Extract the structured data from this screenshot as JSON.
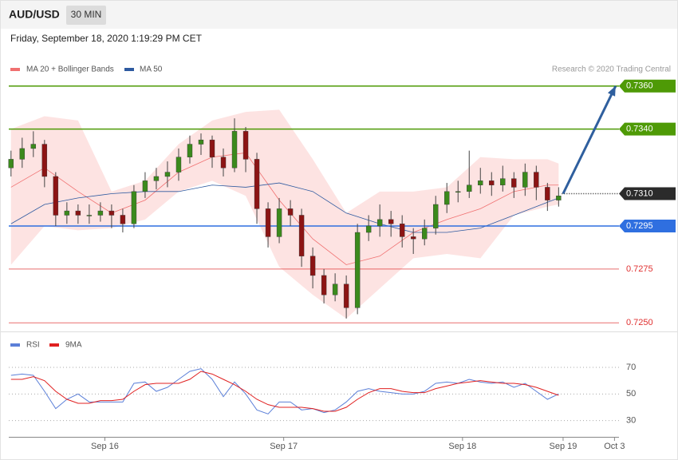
{
  "header": {
    "symbol": "AUD/USD",
    "interval": "30 MIN",
    "datetime": "Friday, September 18, 2020 1:19:29 PM CET",
    "credit": "Research © 2020 Trading Central"
  },
  "chart_data": [
    {
      "type": "candlestick",
      "xlim": [
        -0.2,
        54.4
      ],
      "ylim": [
        0.7246,
        0.7364
      ],
      "up_color": "#3b8a1c",
      "down_color": "#8c1414",
      "opens": [
        0.7322,
        0.7326,
        0.7331,
        0.7333,
        0.7318,
        0.73,
        0.7302,
        0.73,
        0.73,
        0.7302,
        0.73,
        0.7296,
        0.7311,
        0.7316,
        0.7318,
        0.732,
        0.7327,
        0.7333,
        0.7335,
        0.7327,
        0.7322,
        0.7339,
        0.7326,
        0.7303,
        0.729,
        0.7303,
        0.73,
        0.7281,
        0.7272,
        0.7263,
        0.7268,
        0.7257,
        0.7292,
        0.7295,
        0.7298,
        0.7296,
        0.729,
        0.7289,
        0.7294,
        0.7305,
        0.7311,
        0.7311,
        0.7314,
        0.7316,
        0.7314,
        0.7317,
        0.7313,
        0.732,
        0.7313,
        0.7307
      ],
      "highs": [
        0.733,
        0.7336,
        0.7339,
        0.7335,
        0.732,
        0.7306,
        0.7305,
        0.7305,
        0.7306,
        0.7305,
        0.7303,
        0.7314,
        0.732,
        0.7322,
        0.7325,
        0.7331,
        0.7337,
        0.7338,
        0.7337,
        0.7331,
        0.7345,
        0.7341,
        0.7329,
        0.7306,
        0.7308,
        0.7307,
        0.7303,
        0.7285,
        0.7275,
        0.7273,
        0.7272,
        0.7296,
        0.73,
        0.7305,
        0.7302,
        0.73,
        0.7294,
        0.7298,
        0.7309,
        0.7315,
        0.7316,
        0.733,
        0.7322,
        0.732,
        0.7323,
        0.732,
        0.7324,
        0.7323,
        0.7315,
        0.7313
      ],
      "lows": [
        0.7318,
        0.7322,
        0.7327,
        0.7313,
        0.7295,
        0.7296,
        0.7296,
        0.7296,
        0.7297,
        0.7294,
        0.7292,
        0.7294,
        0.7308,
        0.7312,
        0.7313,
        0.7316,
        0.7324,
        0.7328,
        0.7322,
        0.7318,
        0.732,
        0.732,
        0.7296,
        0.7285,
        0.7287,
        0.7295,
        0.7276,
        0.7266,
        0.7259,
        0.726,
        0.7252,
        0.7254,
        0.7288,
        0.729,
        0.729,
        0.7285,
        0.7282,
        0.7286,
        0.7291,
        0.7301,
        0.7306,
        0.7308,
        0.731,
        0.7309,
        0.7311,
        0.7308,
        0.7309,
        0.7307,
        0.7302,
        0.7304
      ],
      "closes": [
        0.7326,
        0.7331,
        0.7333,
        0.7318,
        0.73,
        0.7302,
        0.73,
        0.73,
        0.7302,
        0.73,
        0.7296,
        0.7311,
        0.7316,
        0.7318,
        0.732,
        0.7327,
        0.7333,
        0.7335,
        0.7327,
        0.7322,
        0.7339,
        0.7326,
        0.7303,
        0.729,
        0.7303,
        0.73,
        0.7281,
        0.7272,
        0.7263,
        0.7268,
        0.7257,
        0.7292,
        0.7295,
        0.7298,
        0.7296,
        0.729,
        0.7289,
        0.7294,
        0.7305,
        0.7311,
        0.7311,
        0.7314,
        0.7316,
        0.7314,
        0.7317,
        0.7313,
        0.732,
        0.7313,
        0.7307,
        0.7309
      ],
      "bands": {
        "name": "MA 20 + Bollinger Bands",
        "color": "#f07070",
        "fill": "#fddcdb",
        "x": [
          0,
          3,
          6,
          9,
          12,
          15,
          18,
          21,
          24,
          27,
          30,
          33,
          36,
          39,
          42,
          45,
          48,
          49
        ],
        "upper": [
          0.734,
          0.7346,
          0.7344,
          0.7311,
          0.7316,
          0.7333,
          0.7344,
          0.7348,
          0.7349,
          0.7326,
          0.7301,
          0.7311,
          0.7311,
          0.7313,
          0.7327,
          0.7326,
          0.7326,
          0.7324
        ],
        "lower": [
          0.7277,
          0.7295,
          0.7293,
          0.7294,
          0.7298,
          0.7311,
          0.7316,
          0.7309,
          0.7276,
          0.7263,
          0.7252,
          0.7266,
          0.728,
          0.7282,
          0.728,
          0.73,
          0.7304,
          0.7305
        ],
        "middle": [
          0.7313,
          0.7322,
          0.7311,
          0.7301,
          0.7307,
          0.732,
          0.7327,
          0.7329,
          0.7307,
          0.7289,
          0.7277,
          0.7281,
          0.7292,
          0.7298,
          0.7303,
          0.7311,
          0.7314,
          0.7314
        ]
      },
      "ma50": {
        "name": "MA 50",
        "color": "#2e5aa0",
        "x": [
          0,
          3,
          6,
          9,
          12,
          15,
          18,
          21,
          24,
          27,
          30,
          33,
          36,
          39,
          42,
          45,
          48,
          49
        ],
        "values": [
          0.7296,
          0.7305,
          0.7308,
          0.731,
          0.7311,
          0.7311,
          0.7314,
          0.7313,
          0.7315,
          0.7311,
          0.7301,
          0.7296,
          0.7292,
          0.7292,
          0.7294,
          0.73,
          0.7306,
          0.7308
        ]
      },
      "levels": [
        {
          "value": 0.736,
          "label": "0.7360",
          "color": "#4e9a06",
          "box": true,
          "style": "solid"
        },
        {
          "value": 0.734,
          "label": "0.7340",
          "color": "#4e9a06",
          "box": true,
          "style": "solid"
        },
        {
          "value": 0.731,
          "label": "0.7310",
          "color": "#2b2b2b",
          "box": true,
          "style": "dotted"
        },
        {
          "value": 0.7295,
          "label": "0.7295",
          "color": "#2f6fe0",
          "box": true,
          "style": "solid"
        },
        {
          "value": 0.7275,
          "label": "0.7275",
          "color": "#e03030",
          "box": false,
          "style": "solid"
        },
        {
          "value": 0.725,
          "label": "0.7250",
          "color": "#e03030",
          "box": false,
          "style": "solid"
        }
      ],
      "projection": {
        "color": "#2f5f9e",
        "x": [
          49.4,
          54.1
        ],
        "y": [
          0.731,
          0.736
        ]
      }
    },
    {
      "type": "line",
      "xlim": [
        -0.2,
        54.4
      ],
      "ylim": [
        19,
        94
      ],
      "yticks": [
        30,
        50,
        70
      ],
      "grid": true,
      "xticks": [
        {
          "value": 8.4,
          "label": "Sep 16"
        },
        {
          "value": 24.4,
          "label": "Sep 17"
        },
        {
          "value": 40.4,
          "label": "Sep 18"
        },
        {
          "value": 49.4,
          "label": "Sep 19"
        },
        {
          "value": 54,
          "label": "Oct 3"
        }
      ],
      "series": [
        {
          "name": "RSI",
          "color": "#5b7fd8",
          "values": [
            64,
            65,
            64,
            52,
            39,
            46,
            50,
            44,
            44,
            44,
            44,
            58,
            59,
            52,
            55,
            61,
            67,
            69,
            61,
            48,
            59,
            50,
            38,
            35,
            44,
            44,
            38,
            39,
            36,
            38,
            44,
            52,
            54,
            52,
            51,
            50,
            50,
            52,
            58,
            59,
            58,
            61,
            59,
            58,
            59,
            55,
            58,
            52,
            46,
            50
          ]
        },
        {
          "name": "9MA",
          "color": "#e02020",
          "values": [
            61,
            61,
            63,
            60,
            52,
            46,
            43,
            43,
            45,
            45,
            46,
            52,
            57,
            58,
            58,
            58,
            61,
            67,
            65,
            61,
            57,
            52,
            46,
            42,
            40,
            40,
            40,
            39,
            37,
            37,
            40,
            46,
            51,
            54,
            54,
            52,
            51,
            51,
            54,
            56,
            58,
            59,
            60,
            59,
            58,
            58,
            57,
            55,
            52,
            49
          ]
        }
      ]
    }
  ]
}
